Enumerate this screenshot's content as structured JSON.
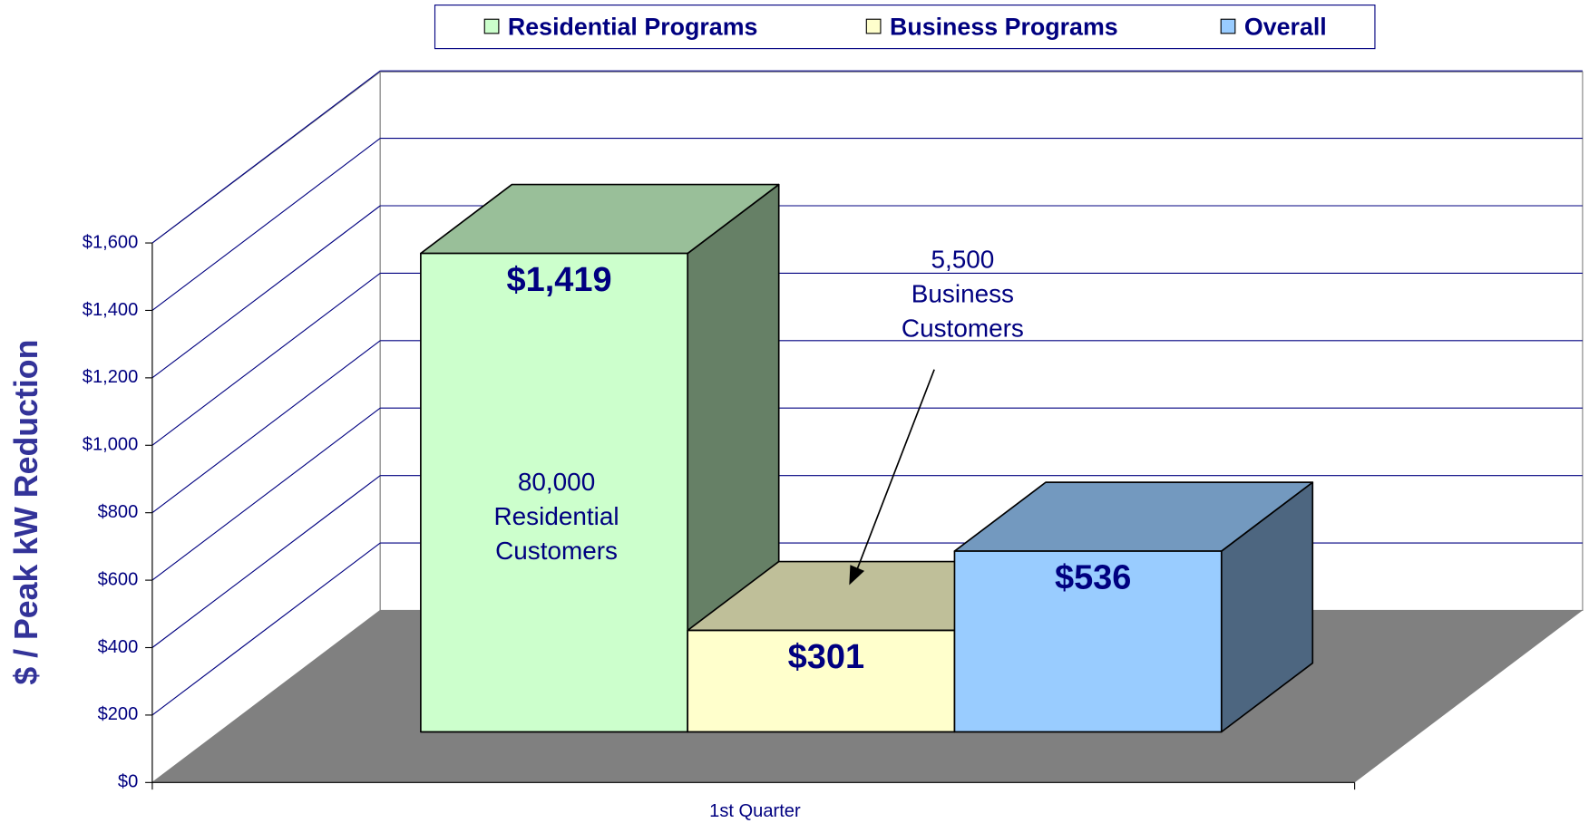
{
  "chart_data": {
    "type": "bar3d",
    "ylabel": "$ / Peak kW Reduction",
    "categories": [
      "1st Quarter"
    ],
    "series": [
      {
        "name": "Residential Programs",
        "color": "#ccffcc",
        "values": [
          1419
        ],
        "value_labels": [
          "$1,419"
        ]
      },
      {
        "name": "Business Programs",
        "color": "#ffffcc",
        "values": [
          301
        ],
        "value_labels": [
          "$301"
        ]
      },
      {
        "name": "Overall",
        "color": "#99ccff",
        "values": [
          536
        ],
        "value_labels": [
          "$536"
        ]
      }
    ],
    "ylim": [
      0,
      1600
    ],
    "yticks": [
      {
        "value": 0,
        "label": "$0"
      },
      {
        "value": 200,
        "label": "$200"
      },
      {
        "value": 400,
        "label": "$400"
      },
      {
        "value": 600,
        "label": "$600"
      },
      {
        "value": 800,
        "label": "$800"
      },
      {
        "value": 1000,
        "label": "$1,000"
      },
      {
        "value": 1200,
        "label": "$1,200"
      },
      {
        "value": 1400,
        "label": "$1,400"
      },
      {
        "value": 1600,
        "label": "$1,600"
      }
    ],
    "grid": true,
    "legend": "top",
    "annotations": [
      [
        "80,000",
        "Residential",
        "Customers"
      ],
      [
        "5,500",
        "Business",
        "Customers"
      ]
    ]
  }
}
